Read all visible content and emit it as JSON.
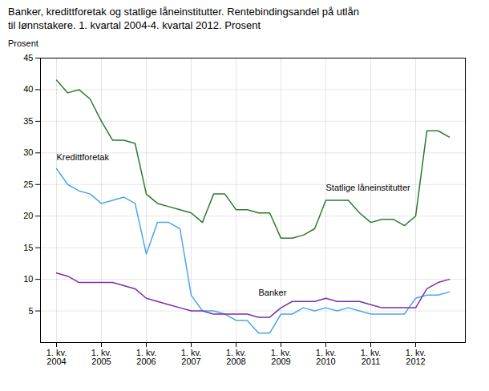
{
  "chart_data": {
    "type": "line",
    "title": "Banker, kredittforetak og statlige låneinstitutter. Rentebindingsandel på utlån\ntil lønnstakere. 1. kvartal 2004-4. kvartal 2012. Prosent",
    "ylabel": "Prosent",
    "categories": [
      "1. kv.\n2004",
      null,
      null,
      null,
      "1. kv.\n2005",
      null,
      null,
      null,
      "1. kv.\n2006",
      null,
      null,
      null,
      "1. kv.\n2007",
      null,
      null,
      null,
      "1. kv.\n2008",
      null,
      null,
      null,
      "1. kv.\n2009",
      null,
      null,
      null,
      "1. kv.\n2010",
      null,
      null,
      null,
      "1. kv.\n2011",
      null,
      null,
      null,
      "1. kv.\n2012",
      null,
      null,
      null
    ],
    "series": [
      {
        "name": "Statlige låneinstitutter",
        "color": "#2d7a2d",
        "values": [
          41.5,
          39.5,
          40.0,
          38.5,
          35.0,
          32.0,
          32.0,
          31.5,
          23.5,
          22.0,
          21.5,
          21.0,
          20.5,
          19.0,
          23.5,
          23.5,
          21.0,
          21.0,
          20.5,
          20.5,
          16.5,
          16.5,
          17.0,
          18.0,
          22.5,
          22.5,
          22.5,
          20.5,
          19.0,
          19.5,
          19.5,
          18.5,
          20.0,
          33.5,
          33.5,
          32.5
        ]
      },
      {
        "name": "Kredittforetak",
        "color": "#4da6e8",
        "values": [
          27.5,
          25.0,
          24.0,
          23.5,
          22.0,
          22.5,
          23.0,
          22.0,
          14.0,
          19.0,
          19.0,
          18.0,
          7.5,
          5.0,
          5.0,
          4.5,
          3.5,
          3.5,
          1.5,
          1.5,
          4.5,
          4.5,
          5.5,
          5.0,
          5.5,
          5.0,
          5.5,
          5.0,
          4.5,
          4.5,
          4.5,
          4.5,
          7.0,
          7.5,
          7.5,
          8.0
        ]
      },
      {
        "name": "Banker",
        "color": "#7b2fa8",
        "values": [
          11.0,
          10.5,
          9.5,
          9.5,
          9.5,
          9.5,
          9.0,
          8.5,
          7.0,
          6.5,
          6.0,
          5.5,
          5.0,
          5.0,
          4.5,
          4.5,
          4.5,
          4.5,
          4.0,
          4.0,
          5.5,
          6.5,
          6.5,
          6.5,
          7.0,
          6.5,
          6.5,
          6.5,
          6.0,
          5.5,
          5.5,
          5.5,
          5.5,
          8.5,
          9.5,
          10.0
        ]
      }
    ],
    "ylim": [
      0,
      45
    ],
    "yticks": [
      5,
      10,
      15,
      20,
      25,
      30,
      35,
      40,
      45
    ],
    "grid": true
  }
}
